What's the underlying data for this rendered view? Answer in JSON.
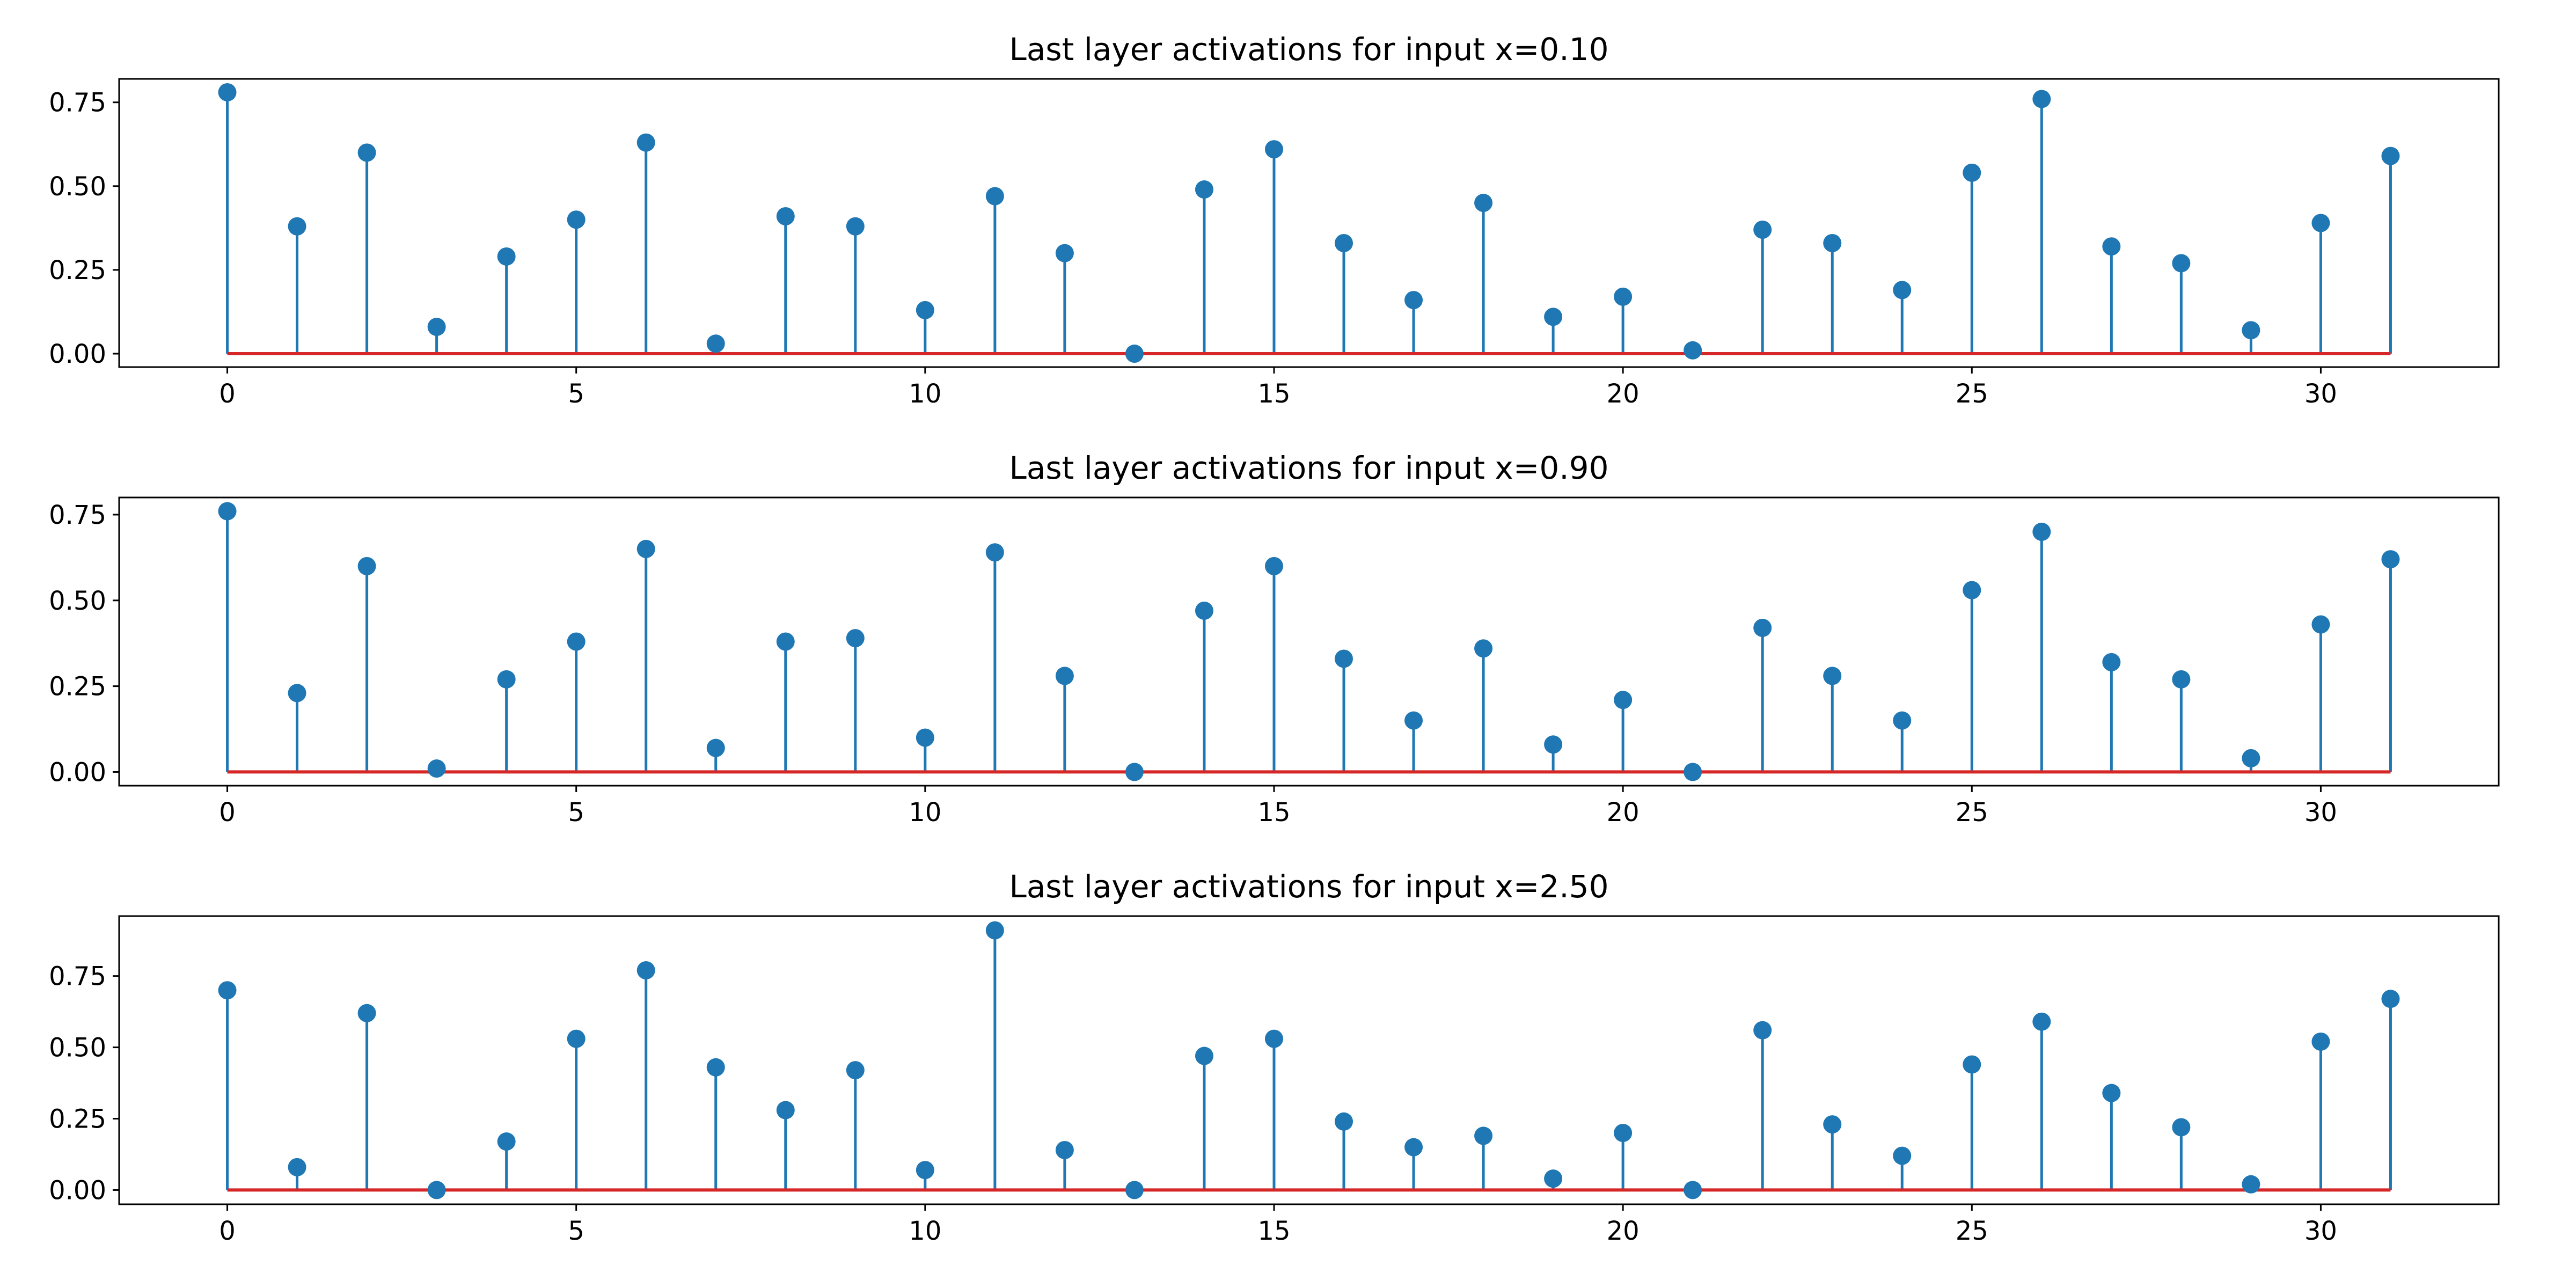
{
  "chart_data": [
    {
      "type": "stem",
      "title": "Last layer activations for input x=0.10",
      "x": [
        0,
        1,
        2,
        3,
        4,
        5,
        6,
        7,
        8,
        9,
        10,
        11,
        12,
        13,
        14,
        15,
        16,
        17,
        18,
        19,
        20,
        21,
        22,
        23,
        24,
        25,
        26,
        27,
        28,
        29,
        30,
        31
      ],
      "values": [
        0.78,
        0.38,
        0.6,
        0.08,
        0.29,
        0.4,
        0.63,
        0.03,
        0.41,
        0.38,
        0.13,
        0.47,
        0.3,
        0.0,
        0.49,
        0.61,
        0.33,
        0.16,
        0.45,
        0.11,
        0.17,
        0.01,
        0.37,
        0.33,
        0.19,
        0.54,
        0.76,
        0.32,
        0.27,
        0.07,
        0.39,
        0.59
      ],
      "xlim": [
        -1.55,
        32.55
      ],
      "ylim": [
        -0.04,
        0.82
      ],
      "xticks": [
        0,
        5,
        10,
        15,
        20,
        25,
        30
      ],
      "xtick_labels": [
        "0",
        "5",
        "10",
        "15",
        "20",
        "25",
        "30"
      ],
      "yticks": [
        0.0,
        0.25,
        0.5,
        0.75
      ],
      "ytick_labels": [
        "0.00",
        "0.25",
        "0.50",
        "0.75"
      ],
      "xlabel": "",
      "ylabel": "",
      "grid": false
    },
    {
      "type": "stem",
      "title": "Last layer activations for input x=0.90",
      "x": [
        0,
        1,
        2,
        3,
        4,
        5,
        6,
        7,
        8,
        9,
        10,
        11,
        12,
        13,
        14,
        15,
        16,
        17,
        18,
        19,
        20,
        21,
        22,
        23,
        24,
        25,
        26,
        27,
        28,
        29,
        30,
        31
      ],
      "values": [
        0.76,
        0.23,
        0.6,
        0.01,
        0.27,
        0.38,
        0.65,
        0.07,
        0.38,
        0.39,
        0.1,
        0.64,
        0.28,
        0.0,
        0.47,
        0.6,
        0.33,
        0.15,
        0.36,
        0.08,
        0.21,
        0.0,
        0.42,
        0.28,
        0.15,
        0.53,
        0.7,
        0.32,
        0.27,
        0.04,
        0.43,
        0.62
      ],
      "xlim": [
        -1.55,
        32.55
      ],
      "ylim": [
        -0.04,
        0.8
      ],
      "xticks": [
        0,
        5,
        10,
        15,
        20,
        25,
        30
      ],
      "xtick_labels": [
        "0",
        "5",
        "10",
        "15",
        "20",
        "25",
        "30"
      ],
      "yticks": [
        0.0,
        0.25,
        0.5,
        0.75
      ],
      "ytick_labels": [
        "0.00",
        "0.25",
        "0.50",
        "0.75"
      ],
      "xlabel": "",
      "ylabel": "",
      "grid": false
    },
    {
      "type": "stem",
      "title": "Last layer activations for input x=2.50",
      "x": [
        0,
        1,
        2,
        3,
        4,
        5,
        6,
        7,
        8,
        9,
        10,
        11,
        12,
        13,
        14,
        15,
        16,
        17,
        18,
        19,
        20,
        21,
        22,
        23,
        24,
        25,
        26,
        27,
        28,
        29,
        30,
        31
      ],
      "values": [
        0.7,
        0.08,
        0.62,
        0.0,
        0.17,
        0.53,
        0.77,
        0.43,
        0.28,
        0.42,
        0.07,
        0.91,
        0.14,
        0.0,
        0.47,
        0.53,
        0.24,
        0.15,
        0.19,
        0.04,
        0.2,
        0.0,
        0.56,
        0.23,
        0.12,
        0.44,
        0.59,
        0.34,
        0.22,
        0.02,
        0.52,
        0.67
      ],
      "xlim": [
        -1.55,
        32.55
      ],
      "ylim": [
        -0.05,
        0.96
      ],
      "xticks": [
        0,
        5,
        10,
        15,
        20,
        25,
        30
      ],
      "xtick_labels": [
        "0",
        "5",
        "10",
        "15",
        "20",
        "25",
        "30"
      ],
      "yticks": [
        0.0,
        0.25,
        0.5,
        0.75
      ],
      "ytick_labels": [
        "0.00",
        "0.25",
        "0.50",
        "0.75"
      ],
      "xlabel": "",
      "ylabel": "",
      "grid": false
    }
  ],
  "colors": {
    "stem": "#1f77b4",
    "marker": "#1f77b4",
    "baseline": "#d62728",
    "axes": "#000000",
    "background": "#ffffff"
  }
}
